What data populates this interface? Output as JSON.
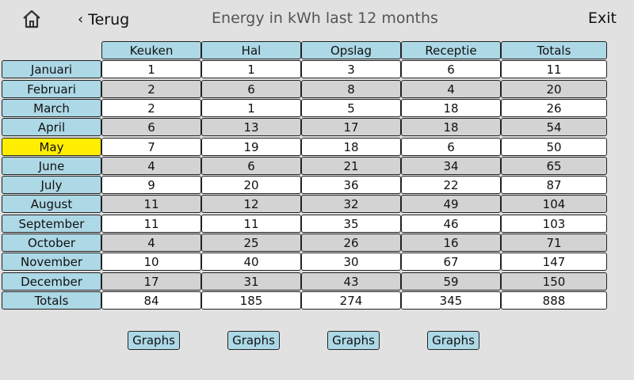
{
  "header": {
    "back_label": "Terug",
    "title": "Energy in kWh last 12 months",
    "exit_label": "Exit"
  },
  "table": {
    "columns": [
      "Keuken",
      "Hal",
      "Opslag",
      "Receptie",
      "Totals"
    ],
    "selected_row": "May",
    "rows": [
      {
        "label": "Januari",
        "values": [
          "1",
          "1",
          "3",
          "6",
          "11"
        ]
      },
      {
        "label": "Februari",
        "values": [
          "2",
          "6",
          "8",
          "4",
          "20"
        ]
      },
      {
        "label": "March",
        "values": [
          "2",
          "1",
          "5",
          "18",
          "26"
        ]
      },
      {
        "label": "April",
        "values": [
          "6",
          "13",
          "17",
          "18",
          "54"
        ]
      },
      {
        "label": "May",
        "values": [
          "7",
          "19",
          "18",
          "6",
          "50"
        ]
      },
      {
        "label": "June",
        "values": [
          "4",
          "6",
          "21",
          "34",
          "65"
        ]
      },
      {
        "label": "July",
        "values": [
          "9",
          "20",
          "36",
          "22",
          "87"
        ]
      },
      {
        "label": "August",
        "values": [
          "11",
          "12",
          "32",
          "49",
          "104"
        ]
      },
      {
        "label": "September",
        "values": [
          "11",
          "11",
          "35",
          "46",
          "103"
        ]
      },
      {
        "label": "October",
        "values": [
          "4",
          "25",
          "26",
          "16",
          "71"
        ]
      },
      {
        "label": "November",
        "values": [
          "10",
          "40",
          "30",
          "67",
          "147"
        ]
      },
      {
        "label": "December",
        "values": [
          "17",
          "31",
          "43",
          "59",
          "150"
        ]
      },
      {
        "label": "Totals",
        "values": [
          "84",
          "185",
          "274",
          "345",
          "888"
        ]
      }
    ]
  },
  "graph_buttons": [
    "Graphs",
    "Graphs",
    "Graphs",
    "Graphs"
  ],
  "colors": {
    "header_bg": "#add8e6",
    "selected_row": "#ffee00",
    "row_white": "#ffffff",
    "row_gray": "#d3d3d3",
    "page_bg": "#e1e1e1"
  }
}
